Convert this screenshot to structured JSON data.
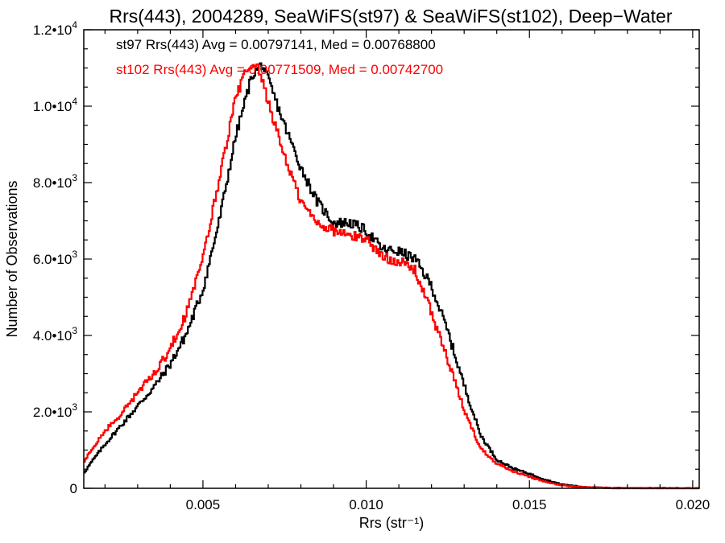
{
  "chart_data": {
    "type": "line",
    "step": true,
    "title": "Rrs(443), 2004289, SeaWiFS(st97) & SeaWiFS(st102), Deep−Water",
    "xlabel": "Rrs (str⁻¹)",
    "ylabel": "Number of Observations",
    "xlim": [
      0.00135,
      0.0202
    ],
    "ylim": [
      0,
      12000
    ],
    "grid": false,
    "x_ticks": [
      {
        "value": 0.005,
        "label": "0.005"
      },
      {
        "value": 0.01,
        "label": "0.010"
      },
      {
        "value": 0.015,
        "label": "0.015"
      },
      {
        "value": 0.02,
        "label": "0.020"
      }
    ],
    "y_ticks": [
      {
        "value": 0,
        "label": "0",
        "exp": ""
      },
      {
        "value": 2000,
        "label": "2.0•10",
        "exp": "3"
      },
      {
        "value": 4000,
        "label": "4.0•10",
        "exp": "3"
      },
      {
        "value": 6000,
        "label": "6.0•10",
        "exp": "3"
      },
      {
        "value": 8000,
        "label": "8.0•10",
        "exp": "3"
      },
      {
        "value": 10000,
        "label": "1.0•10",
        "exp": "4"
      },
      {
        "value": 12000,
        "label": "1.2•10",
        "exp": "4"
      }
    ],
    "annotations": [
      {
        "text": "st97 Rrs(443) Avg = 0.00797141, Med = 0.00768800",
        "color": "#000000"
      },
      {
        "text": "st102 Rrs(443) Avg = 0.00771509, Med = 0.00742700",
        "color": "#ff0000"
      }
    ],
    "series": [
      {
        "id": "st97",
        "color": "#000000",
        "points": [
          [
            0.00135,
            400
          ],
          [
            0.0016,
            700
          ],
          [
            0.002,
            1150
          ],
          [
            0.0025,
            1650
          ],
          [
            0.003,
            2150
          ],
          [
            0.0035,
            2650
          ],
          [
            0.004,
            3250
          ],
          [
            0.0045,
            4050
          ],
          [
            0.005,
            5200
          ],
          [
            0.0055,
            7000
          ],
          [
            0.006,
            9200
          ],
          [
            0.0065,
            10800
          ],
          [
            0.0068,
            11100
          ],
          [
            0.007,
            10700
          ],
          [
            0.0075,
            9500
          ],
          [
            0.008,
            8400
          ],
          [
            0.0085,
            7500
          ],
          [
            0.009,
            6950
          ],
          [
            0.0095,
            6950
          ],
          [
            0.01,
            6750
          ],
          [
            0.0105,
            6250
          ],
          [
            0.011,
            6200
          ],
          [
            0.0115,
            6000
          ],
          [
            0.012,
            5300
          ],
          [
            0.0125,
            4100
          ],
          [
            0.013,
            2700
          ],
          [
            0.0135,
            1400
          ],
          [
            0.014,
            750
          ],
          [
            0.0145,
            520
          ],
          [
            0.015,
            380
          ],
          [
            0.0155,
            220
          ],
          [
            0.016,
            100
          ],
          [
            0.0165,
            50
          ],
          [
            0.017,
            20
          ],
          [
            0.0175,
            8
          ],
          [
            0.018,
            4
          ],
          [
            0.019,
            2
          ],
          [
            0.0202,
            0
          ]
        ]
      },
      {
        "id": "st102",
        "color": "#ff0000",
        "points": [
          [
            0.00135,
            700
          ],
          [
            0.0016,
            1000
          ],
          [
            0.002,
            1500
          ],
          [
            0.0025,
            1950
          ],
          [
            0.003,
            2500
          ],
          [
            0.0035,
            3000
          ],
          [
            0.004,
            3650
          ],
          [
            0.0045,
            4600
          ],
          [
            0.005,
            6000
          ],
          [
            0.0055,
            8100
          ],
          [
            0.006,
            10200
          ],
          [
            0.0063,
            10900
          ],
          [
            0.0067,
            11000
          ],
          [
            0.007,
            10100
          ],
          [
            0.0075,
            8700
          ],
          [
            0.008,
            7500
          ],
          [
            0.0085,
            6950
          ],
          [
            0.009,
            6750
          ],
          [
            0.0095,
            6600
          ],
          [
            0.01,
            6550
          ],
          [
            0.0105,
            6050
          ],
          [
            0.011,
            5950
          ],
          [
            0.0115,
            5700
          ],
          [
            0.012,
            4600
          ],
          [
            0.0125,
            3350
          ],
          [
            0.013,
            2050
          ],
          [
            0.0135,
            1050
          ],
          [
            0.014,
            650
          ],
          [
            0.0145,
            450
          ],
          [
            0.015,
            300
          ],
          [
            0.0155,
            160
          ],
          [
            0.016,
            80
          ],
          [
            0.0165,
            35
          ],
          [
            0.017,
            15
          ],
          [
            0.0175,
            6
          ],
          [
            0.018,
            3
          ],
          [
            0.019,
            1
          ],
          [
            0.0202,
            0
          ]
        ]
      }
    ]
  }
}
